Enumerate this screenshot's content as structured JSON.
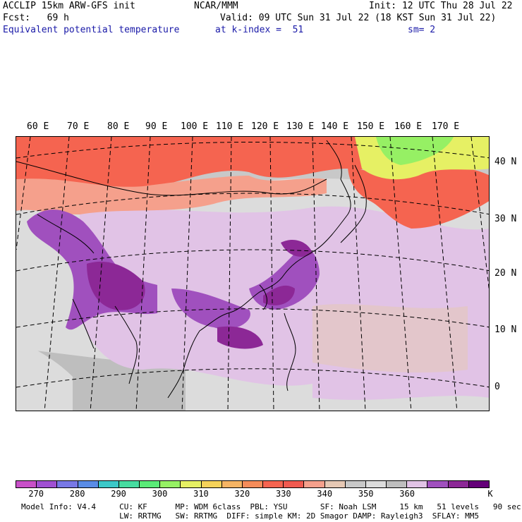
{
  "header": {
    "left_line1": "ACCLIP 15km ARW-GFS init",
    "left_line2": "Fcst:   69 h",
    "left_line3": "Equivalent potential temperature",
    "center_line1": "NCAR/MMM",
    "right_line1": "Init: 12 UTC Thu 28 Jul 22",
    "valid_line": "Valid: 09 UTC Sun 31 Jul 22 (18 KST Sun 31 Jul 22)",
    "level_line": "at k-index =  51",
    "smooth_line": "sm= 2"
  },
  "map": {
    "lon_labels": [
      "60 E",
      "70 E",
      "80 E",
      "90 E",
      "100 E",
      "110 E",
      "120 E",
      "130 E",
      "140 E",
      "150 E",
      "160 E",
      "170 E"
    ],
    "lat_labels": [
      "40 N",
      "30 N",
      "20 N",
      "10 N",
      "0"
    ],
    "field": "Equivalent potential temperature"
  },
  "colorbar": {
    "unit": "K",
    "colors": [
      "#c850c8",
      "#a050d2",
      "#7878e6",
      "#5a8ce6",
      "#3cc8c8",
      "#46dca0",
      "#5aeb78",
      "#96f064",
      "#e6f064",
      "#f5d25a",
      "#f5b464",
      "#f58c5a",
      "#f56450",
      "#f05a50",
      "#f5a08c",
      "#e6c8b4",
      "#c8c8c8",
      "#dcdcdc",
      "#bebebe",
      "#e1c3e6",
      "#a050be",
      "#8c2896",
      "#640078"
    ],
    "labels": [
      "270",
      "280",
      "290",
      "300",
      "310",
      "320",
      "330",
      "340",
      "350",
      "360"
    ]
  },
  "footer": {
    "line1": "Model Info: V4.4     CU: KF      MP: WDM 6class  PBL: YSU       SF: Noah LSM     15 km   51 levels   90 sec",
    "line2": "                     LW: RRTMG   SW: RRTMG  DIFF: simple KM: 2D Smagor DAMP: Rayleigh3  SFLAY: MM5"
  }
}
